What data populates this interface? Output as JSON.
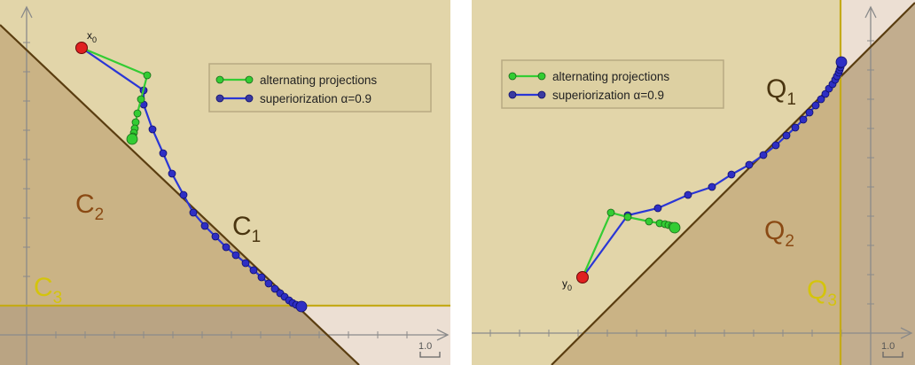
{
  "colors": {
    "outer_bg": "#e2d5a9",
    "halfplane_fill": "#bfa67a",
    "halfplane_fill_opacity": 0.55,
    "horizontal_band_fill": "#c2ad88",
    "vertical_band_fill": "#c2ad88",
    "faded_region": "#ecdfd3",
    "boundary_line": "#5a3d10",
    "band_line": "#c4aa18",
    "axis": "#8a8a8a",
    "alternating": "#33cc33",
    "superiorization": "#2a36d6",
    "marker_outline": "#0f0f6e",
    "start_point": "#e02020",
    "label_brown": "#8a4a14",
    "label_dark": "#4a3510",
    "label_yellow": "#d4c40c"
  },
  "left": {
    "legend": {
      "alternating": "alternating projections",
      "superiorization": "superiorization α=0.9"
    },
    "labels": {
      "c1_main": "C",
      "c1_sub": "1",
      "c2_main": "C",
      "c2_sub": "2",
      "c3_main": "C",
      "c3_sub": "3",
      "start_main": "x",
      "start_sub": "0"
    },
    "scale_label": "1.0"
  },
  "right": {
    "legend": {
      "alternating": "alternating projections",
      "superiorization": "superiorization α=0.9"
    },
    "labels": {
      "q1_main": "Q",
      "q1_sub": "1",
      "q2_main": "Q",
      "q2_sub": "2",
      "q3_main": "Q",
      "q3_sub": "3",
      "start_main": "y",
      "start_sub": "0"
    },
    "scale_label": "1.0"
  }
}
